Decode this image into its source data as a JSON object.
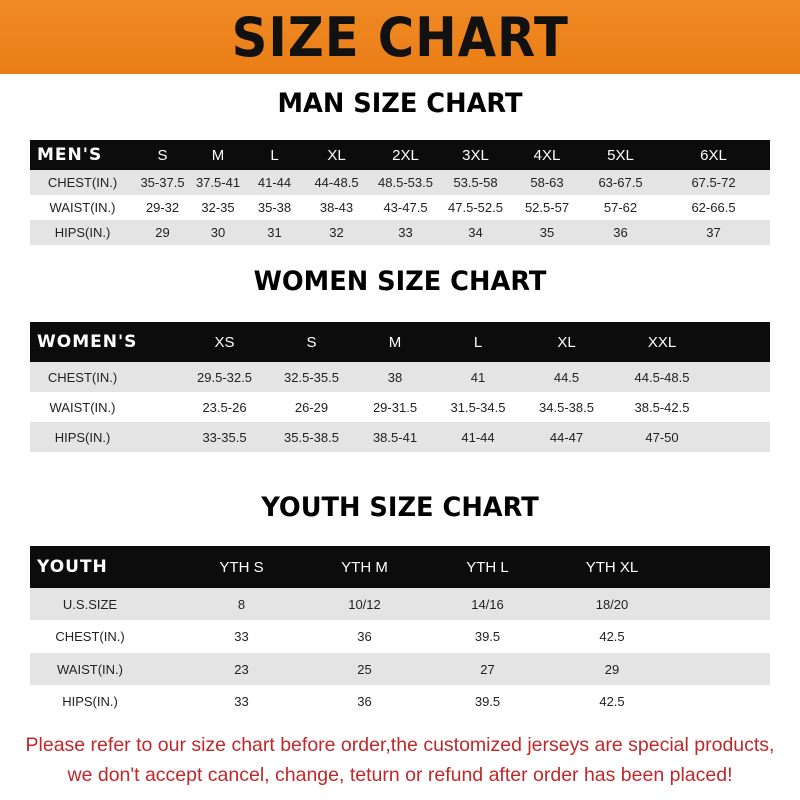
{
  "title": "SIZE CHART",
  "men": {
    "title": "MAN SIZE CHART",
    "header": [
      "MEN'S",
      "S",
      "M",
      "L",
      "XL",
      "2XL",
      "3XL",
      "4XL",
      "5XL",
      "6XL"
    ],
    "rows": [
      [
        "CHEST(IN.)",
        "35-37.5",
        "37.5-41",
        "41-44",
        "44-48.5",
        "48.5-53.5",
        "53.5-58",
        "58-63",
        "63-67.5",
        "67.5-72"
      ],
      [
        "WAIST(IN.)",
        "29-32",
        "32-35",
        "35-38",
        "38-43",
        "43-47.5",
        "47.5-52.5",
        "52.5-57",
        "57-62",
        "62-66.5"
      ],
      [
        "HIPS(IN.)",
        "29",
        "30",
        "31",
        "32",
        "33",
        "34",
        "35",
        "36",
        "37"
      ]
    ]
  },
  "women": {
    "title": "WOMEN SIZE CHART",
    "header": [
      "WOMEN'S",
      "XS",
      "S",
      "M",
      "L",
      "XL",
      "XXL"
    ],
    "rows": [
      [
        "CHEST(IN.)",
        "29.5-32.5",
        "32.5-35.5",
        "38",
        "41",
        "44.5",
        "44.5-48.5"
      ],
      [
        "WAIST(IN.)",
        "23.5-26",
        "26-29",
        "29-31.5",
        "31.5-34.5",
        "34.5-38.5",
        "38.5-42.5"
      ],
      [
        "HIPS(IN.)",
        "33-35.5",
        "35.5-38.5",
        "38.5-41",
        "41-44",
        "44-47",
        "47-50"
      ]
    ]
  },
  "youth": {
    "title": "YOUTH SIZE CHART",
    "header": [
      "YOUTH",
      "YTH S",
      "YTH M",
      "YTH L",
      "YTH XL"
    ],
    "rows": [
      [
        "U.S.SIZE",
        "8",
        "10/12",
        "14/16",
        "18/20"
      ],
      [
        "CHEST(IN.)",
        "33",
        "36",
        "39.5",
        "42.5"
      ],
      [
        "WAIST(IN.)",
        "23",
        "25",
        "27",
        "29"
      ],
      [
        "HIPS(IN.)",
        "33",
        "36",
        "39.5",
        "42.5"
      ]
    ]
  },
  "footer": {
    "line1": "Please refer to our size chart before order,the customized jerseys are special products,",
    "line2": "we don't accept cancel, change, teturn or refund after order has been placed!"
  },
  "colors": {
    "banner": "#ee8420",
    "header_row": "#0c0c0c",
    "stripe": "#e4e4e4",
    "notice": "#c0282a"
  }
}
